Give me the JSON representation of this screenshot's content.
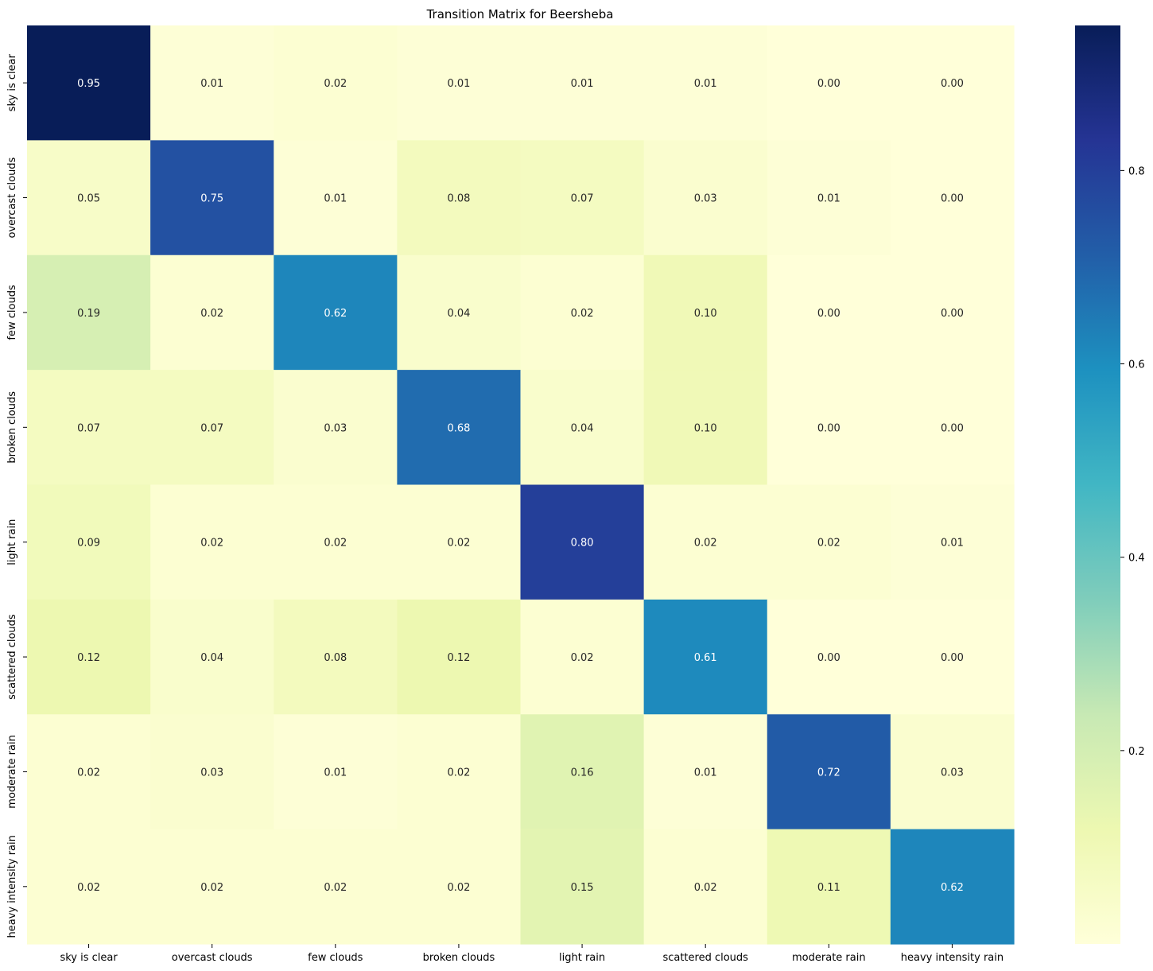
{
  "chart_data": {
    "type": "heatmap",
    "title": "Transition Matrix for Beersheba",
    "xlabel": "",
    "ylabel": "",
    "x_categories": [
      "sky is clear",
      "overcast clouds",
      "few clouds",
      "broken clouds",
      "light rain",
      "scattered clouds",
      "moderate rain",
      "heavy intensity rain"
    ],
    "y_categories": [
      "sky is clear",
      "overcast clouds",
      "few clouds",
      "broken clouds",
      "light rain",
      "scattered clouds",
      "moderate rain",
      "heavy intensity rain"
    ],
    "values": [
      [
        0.95,
        0.01,
        0.02,
        0.01,
        0.01,
        0.01,
        0.0,
        0.0
      ],
      [
        0.05,
        0.75,
        0.01,
        0.08,
        0.07,
        0.03,
        0.01,
        0.0
      ],
      [
        0.19,
        0.02,
        0.62,
        0.04,
        0.02,
        0.1,
        0.0,
        0.0
      ],
      [
        0.07,
        0.07,
        0.03,
        0.68,
        0.04,
        0.1,
        0.0,
        0.0
      ],
      [
        0.09,
        0.02,
        0.02,
        0.02,
        0.8,
        0.02,
        0.02,
        0.01
      ],
      [
        0.12,
        0.04,
        0.08,
        0.12,
        0.02,
        0.61,
        0.0,
        0.0
      ],
      [
        0.02,
        0.03,
        0.01,
        0.02,
        0.16,
        0.01,
        0.72,
        0.03
      ],
      [
        0.02,
        0.02,
        0.02,
        0.02,
        0.15,
        0.02,
        0.11,
        0.62
      ]
    ],
    "value_format": "0.00",
    "colormap": "YlGnBu",
    "colorbar": {
      "range": [
        0.0,
        0.95
      ],
      "ticks": [
        0.2,
        0.4,
        0.6,
        0.8
      ],
      "tick_labels": [
        "0.2",
        "0.4",
        "0.6",
        "0.8"
      ]
    },
    "grid": false,
    "legend": "colorbar-right"
  }
}
